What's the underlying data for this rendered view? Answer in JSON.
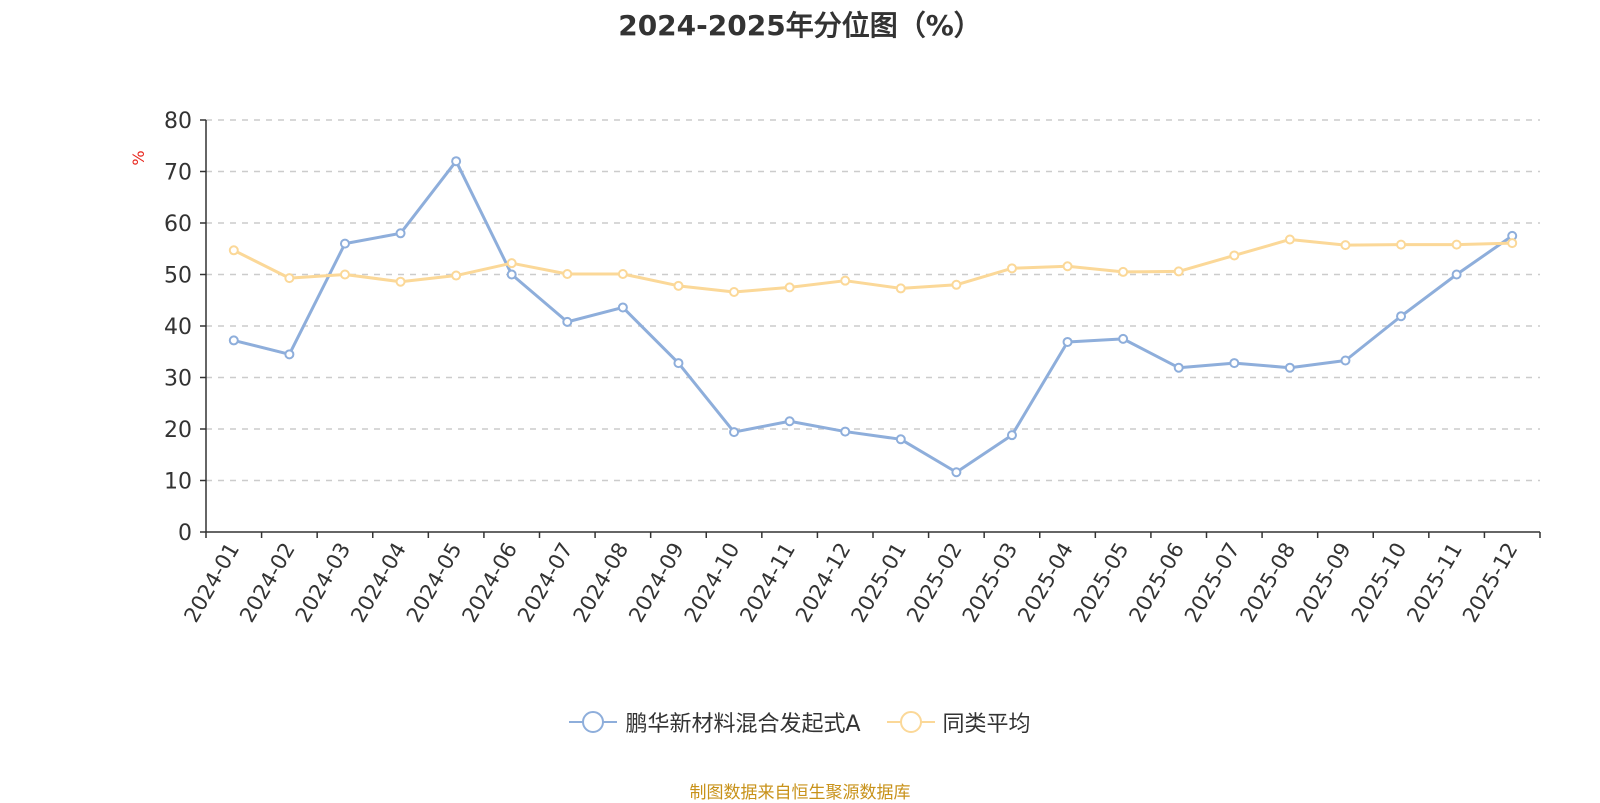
{
  "page": {
    "title": "2024-2025年分位图（%）",
    "source": "制图数据来自恒生聚源数据库"
  },
  "colors": {
    "series_fund": "#8eaedb",
    "series_avg": "#fbd898",
    "unit_label": "#e8261d",
    "grid": "#cccccc",
    "axis": "#333333"
  },
  "chart_data": {
    "type": "line",
    "title": "2024-2025年分位图（%）",
    "ylabel": "%",
    "xlabel": "",
    "ylim": [
      0,
      80
    ],
    "yticks": [
      0,
      10,
      20,
      30,
      40,
      50,
      60,
      70,
      80
    ],
    "grid": true,
    "legend_position": "bottom",
    "categories": [
      "2024-01",
      "2024-02",
      "2024-03",
      "2024-04",
      "2024-05",
      "2024-06",
      "2024-07",
      "2024-08",
      "2024-09",
      "2024-10",
      "2024-11",
      "2024-12",
      "2025-01",
      "2025-02",
      "2025-03",
      "2025-04",
      "2025-05",
      "2025-06",
      "2025-07",
      "2025-08",
      "2025-09",
      "2025-10",
      "2025-11",
      "2025-12"
    ],
    "series": [
      {
        "name": "鹏华新材料混合发起式A",
        "color": "#8eaedb",
        "values": [
          37.2,
          34.5,
          56.0,
          58.0,
          72.0,
          50.0,
          40.8,
          43.6,
          32.8,
          19.4,
          21.5,
          19.5,
          18.0,
          11.6,
          18.8,
          36.9,
          37.5,
          31.9,
          32.8,
          31.9,
          33.3,
          41.9,
          50.0,
          57.5
        ]
      },
      {
        "name": "同类平均",
        "color": "#fbd898",
        "values": [
          54.7,
          49.3,
          50.0,
          48.6,
          49.8,
          52.2,
          50.1,
          50.1,
          47.8,
          46.6,
          47.5,
          48.8,
          47.3,
          48.0,
          51.2,
          51.6,
          50.5,
          50.6,
          53.7,
          56.8,
          55.7,
          55.8,
          55.8,
          56.1
        ]
      }
    ]
  }
}
